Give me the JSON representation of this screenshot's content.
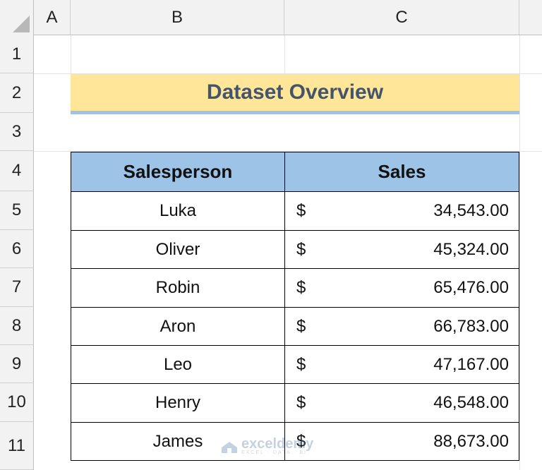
{
  "columns": [
    "A",
    "B",
    "C"
  ],
  "rows": [
    "1",
    "2",
    "3",
    "4",
    "5",
    "6",
    "7",
    "8",
    "9",
    "10",
    "11"
  ],
  "title": "Dataset Overview",
  "table": {
    "headers": [
      "Salesperson",
      "Sales"
    ],
    "currency_symbol": "$",
    "rows": [
      {
        "name": "Luka",
        "sales": "34,543.00"
      },
      {
        "name": "Oliver",
        "sales": "45,324.00"
      },
      {
        "name": "Robin",
        "sales": "65,476.00"
      },
      {
        "name": "Aron",
        "sales": "66,783.00"
      },
      {
        "name": "Leo",
        "sales": "47,167.00"
      },
      {
        "name": "Henry",
        "sales": "46,548.00"
      },
      {
        "name": "James",
        "sales": "88,673.00"
      }
    ]
  },
  "watermark": {
    "name": "exceldemy",
    "tagline": "EXCEL · DATA · BI"
  },
  "colors": {
    "title_fill": "#ffe699",
    "header_fill": "#9dc3e6",
    "title_text": "#44546a"
  }
}
